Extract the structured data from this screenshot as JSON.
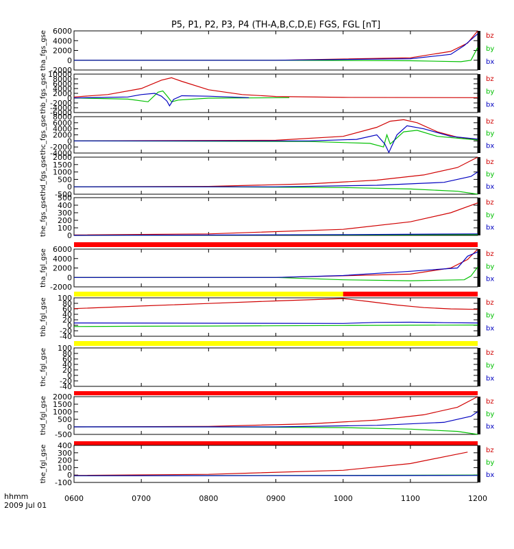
{
  "title": "P5, P1, P2, P3, P4 (TH-A,B,C,D,E) FGS, FGL [nT]",
  "x_axis": {
    "ticks": [
      "0600",
      "0700",
      "0800",
      "0900",
      "1000",
      "1100",
      "1200"
    ],
    "unit_label": "hhmm",
    "date_label": "2009 Jul 01"
  },
  "colors": {
    "bz": "#d00000",
    "by": "#00c000",
    "bx": "#0000c0"
  },
  "chart_data": {
    "type": "line",
    "x_hours": [
      6,
      12
    ],
    "panels": [
      {
        "ylabel": "tha_fgs_gse",
        "ylim": [
          -2000,
          6000
        ],
        "yticks": [
          "6000",
          "4000",
          "2000",
          "0",
          "-2000"
        ],
        "legend": [
          "bz",
          "by",
          "bx"
        ],
        "series": [
          {
            "name": "bz",
            "x": [
              6.0,
              9.0,
              11.0,
              11.6,
              11.85,
              12.0
            ],
            "y": [
              0,
              0,
              500,
              1800,
              3500,
              6000
            ]
          },
          {
            "name": "by",
            "x": [
              6.0,
              9.0,
              11.0,
              11.75,
              11.9,
              12.0
            ],
            "y": [
              0,
              0,
              -100,
              -300,
              0,
              2600
            ]
          },
          {
            "name": "bx",
            "x": [
              6.0,
              9.0,
              11.0,
              11.6,
              11.8,
              12.0
            ],
            "y": [
              0,
              0,
              300,
              1200,
              3000,
              5400
            ]
          }
        ]
      },
      {
        "ylabel": "thb_fgs_gse",
        "ylim": [
          -6000,
          10000
        ],
        "yticks": [
          "10000",
          "8000",
          "6000",
          "4000",
          "2000",
          "0",
          "-2000",
          "-4000",
          "-6000"
        ],
        "legend": [
          "bz",
          "by",
          "bx"
        ],
        "series": [
          {
            "name": "bz",
            "x": [
              6.0,
              6.5,
              7.0,
              7.3,
              7.45,
              7.6,
              8.0,
              8.5,
              9.0,
              10.0,
              12.0
            ],
            "y": [
              500,
              1500,
              4000,
              7500,
              8500,
              7000,
              3500,
              1500,
              700,
              300,
              200
            ]
          },
          {
            "name": "by",
            "x": [
              6.0,
              6.8,
              7.1,
              7.25,
              7.32,
              7.38,
              7.45,
              7.55,
              8.0,
              9.2
            ],
            "y": [
              100,
              -400,
              -1500,
              2500,
              3000,
              1000,
              -1500,
              -800,
              0,
              200
            ]
          },
          {
            "name": "bx",
            "x": [
              6.0,
              6.8,
              7.0,
              7.2,
              7.3,
              7.38,
              7.42,
              7.48,
              7.6,
              8.0,
              8.6
            ],
            "y": [
              100,
              500,
              1500,
              2000,
              800,
              -1200,
              -3200,
              -500,
              1000,
              800,
              200
            ]
          }
        ]
      },
      {
        "ylabel": "thc_fgs_gse",
        "ylim": [
          -4000,
          8000
        ],
        "yticks": [
          "8000",
          "6000",
          "4000",
          "2000",
          "0",
          "-2000",
          "-4000"
        ],
        "legend": [
          "bz",
          "by",
          "bx"
        ],
        "series": [
          {
            "name": "bz",
            "x": [
              6.0,
              9.0,
              10.0,
              10.5,
              10.7,
              10.9,
              11.1,
              11.4,
              11.7,
              12.0
            ],
            "y": [
              0,
              200,
              1500,
              4500,
              6500,
              7000,
              6000,
              3000,
              1200,
              500
            ]
          },
          {
            "name": "by",
            "x": [
              6.0,
              9.5,
              10.4,
              10.6,
              10.65,
              10.7,
              10.8,
              10.9,
              11.1,
              11.4,
              12.0
            ],
            "y": [
              0,
              -200,
              -800,
              -2000,
              2000,
              -1000,
              1000,
              3000,
              3500,
              1500,
              300
            ]
          },
          {
            "name": "bx",
            "x": [
              6.0,
              9.5,
              10.2,
              10.5,
              10.62,
              10.68,
              10.8,
              10.95,
              11.2,
              11.6,
              12.0
            ],
            "y": [
              0,
              0,
              500,
              2000,
              -1000,
              -3800,
              2000,
              5000,
              4000,
              1500,
              600
            ]
          }
        ]
      },
      {
        "ylabel": "thd_fgs_gse",
        "ylim": [
          -500,
          2000
        ],
        "yticks": [
          "2000",
          "1500",
          "1000",
          "500",
          "0",
          "-500"
        ],
        "legend": [
          "bz",
          "by",
          "bx"
        ],
        "series": [
          {
            "name": "bz",
            "x": [
              6.0,
              8.0,
              9.5,
              10.5,
              11.2,
              11.7,
              12.0
            ],
            "y": [
              0,
              30,
              200,
              450,
              800,
              1300,
              2000
            ]
          },
          {
            "name": "by",
            "x": [
              6.0,
              8.0,
              10.0,
              11.0,
              11.7,
              12.0
            ],
            "y": [
              0,
              0,
              -50,
              -150,
              -300,
              -500
            ]
          },
          {
            "name": "bx",
            "x": [
              6.0,
              9.0,
              10.5,
              11.5,
              11.9,
              12.0
            ],
            "y": [
              0,
              0,
              100,
              300,
              700,
              1000
            ]
          }
        ]
      },
      {
        "ylabel": "the_fgs_gse",
        "ylim": [
          0,
          500
        ],
        "yticks": [
          "500",
          "400",
          "300",
          "200",
          "100",
          "0"
        ],
        "legend": [
          "bz",
          "by",
          "bx"
        ],
        "series": [
          {
            "name": "bz",
            "x": [
              6.0,
              8.0,
              10.0,
              11.0,
              11.6,
              12.0
            ],
            "y": [
              5,
              20,
              80,
              180,
              300,
              430
            ]
          },
          {
            "name": "by",
            "x": [
              6.0,
              10.0,
              12.0
            ],
            "y": [
              0,
              5,
              10
            ]
          },
          {
            "name": "bx",
            "x": [
              6.0,
              10.0,
              12.0
            ],
            "y": [
              0,
              10,
              20
            ]
          }
        ]
      },
      {
        "ylabel": "tha_fgl_gse",
        "ylim": [
          -2000,
          6000
        ],
        "yticks": [
          "6000",
          "4000",
          "2000",
          "0",
          "-2000"
        ],
        "legend": [
          "bz",
          "by",
          "bx"
        ],
        "series": [
          {
            "name": "bz",
            "x": [
              6.0,
              9.0,
              11.0,
              11.6,
              11.85,
              12.0
            ],
            "y": [
              0,
              0,
              700,
              2000,
              3800,
              6000
            ]
          },
          {
            "name": "by",
            "x": [
              6.0,
              9.0,
              10.0,
              11.0,
              11.8,
              11.9,
              12.0
            ],
            "y": [
              0,
              0,
              -500,
              -700,
              -500,
              300,
              2200
            ]
          },
          {
            "name": "bx",
            "x": [
              6.0,
              9.0,
              10.0,
              11.0,
              11.7,
              11.85,
              12.0
            ],
            "y": [
              0,
              0,
              400,
              1300,
              2000,
              4500,
              5400
            ]
          }
        ]
      },
      {
        "ylabel": "thb_fgl_gse",
        "ylim": [
          -50,
          100
        ],
        "yticks": [
          "100",
          "80",
          "60",
          "40",
          "20",
          "0",
          "-20",
          "-40"
        ],
        "legend": [
          "bz",
          "by",
          "bx"
        ],
        "series": [
          {
            "name": "bz",
            "x": [
              6.0,
              7.0,
              8.0,
              9.0,
              10.0,
              10.4,
              10.8,
              11.2,
              11.6,
              12.0
            ],
            "y": [
              58,
              68,
              78,
              88,
              97,
              85,
              72,
              62,
              57,
              55
            ]
          },
          {
            "name": "by",
            "x": [
              6.0,
              7.0,
              8.0,
              9.0,
              10.0,
              11.0,
              12.0
            ],
            "y": [
              -12,
              -11,
              -10,
              -9,
              -8,
              -7,
              -6
            ]
          },
          {
            "name": "bx",
            "x": [
              6.0,
              8.0,
              10.0,
              10.5,
              11.0,
              11.5,
              12.0
            ],
            "y": [
              2,
              1,
              0,
              4,
              5,
              3,
              2
            ]
          }
        ]
      },
      {
        "ylabel": "thc_fgl_gse",
        "ylim": [
          -50,
          100
        ],
        "yticks": [
          "100",
          "80",
          "60",
          "40",
          "20",
          "0",
          "-20",
          "-40"
        ],
        "legend": [
          "bz",
          "by",
          "bx"
        ],
        "series": []
      },
      {
        "ylabel": "thd_fgl_gse",
        "ylim": [
          -500,
          2000
        ],
        "yticks": [
          "2000",
          "1500",
          "1000",
          "500",
          "0",
          "-500"
        ],
        "legend": [
          "bz",
          "by",
          "bx"
        ],
        "series": [
          {
            "name": "bz",
            "x": [
              6.0,
              8.0,
              9.5,
              10.5,
              11.2,
              11.7,
              12.0
            ],
            "y": [
              0,
              30,
              200,
              450,
              800,
              1300,
              2000
            ]
          },
          {
            "name": "by",
            "x": [
              6.0,
              8.0,
              10.0,
              11.0,
              11.7,
              12.0
            ],
            "y": [
              0,
              0,
              -50,
              -150,
              -300,
              -500
            ]
          },
          {
            "name": "bx",
            "x": [
              6.0,
              9.0,
              10.5,
              11.5,
              11.9,
              12.0
            ],
            "y": [
              0,
              0,
              100,
              300,
              700,
              1000
            ]
          }
        ]
      },
      {
        "ylabel": "the_fgl_gse",
        "ylim": [
          -100,
          450
        ],
        "yticks": [
          "400",
          "300",
          "200",
          "100",
          "0",
          "-100"
        ],
        "legend": [
          "bz",
          "by",
          "bx"
        ],
        "series": [
          {
            "name": "bz",
            "x": [
              6.0,
              8.0,
              10.0,
              11.0,
              11.6,
              11.85
            ],
            "y": [
              5,
              20,
              80,
              180,
              300,
              350
            ]
          },
          {
            "name": "by",
            "x": [
              6.0,
              10.0,
              12.0
            ],
            "y": [
              0,
              5,
              10
            ]
          },
          {
            "name": "bx",
            "x": [
              6.0,
              10.0,
              12.0
            ],
            "y": [
              0,
              2,
              4
            ]
          }
        ]
      }
    ]
  }
}
